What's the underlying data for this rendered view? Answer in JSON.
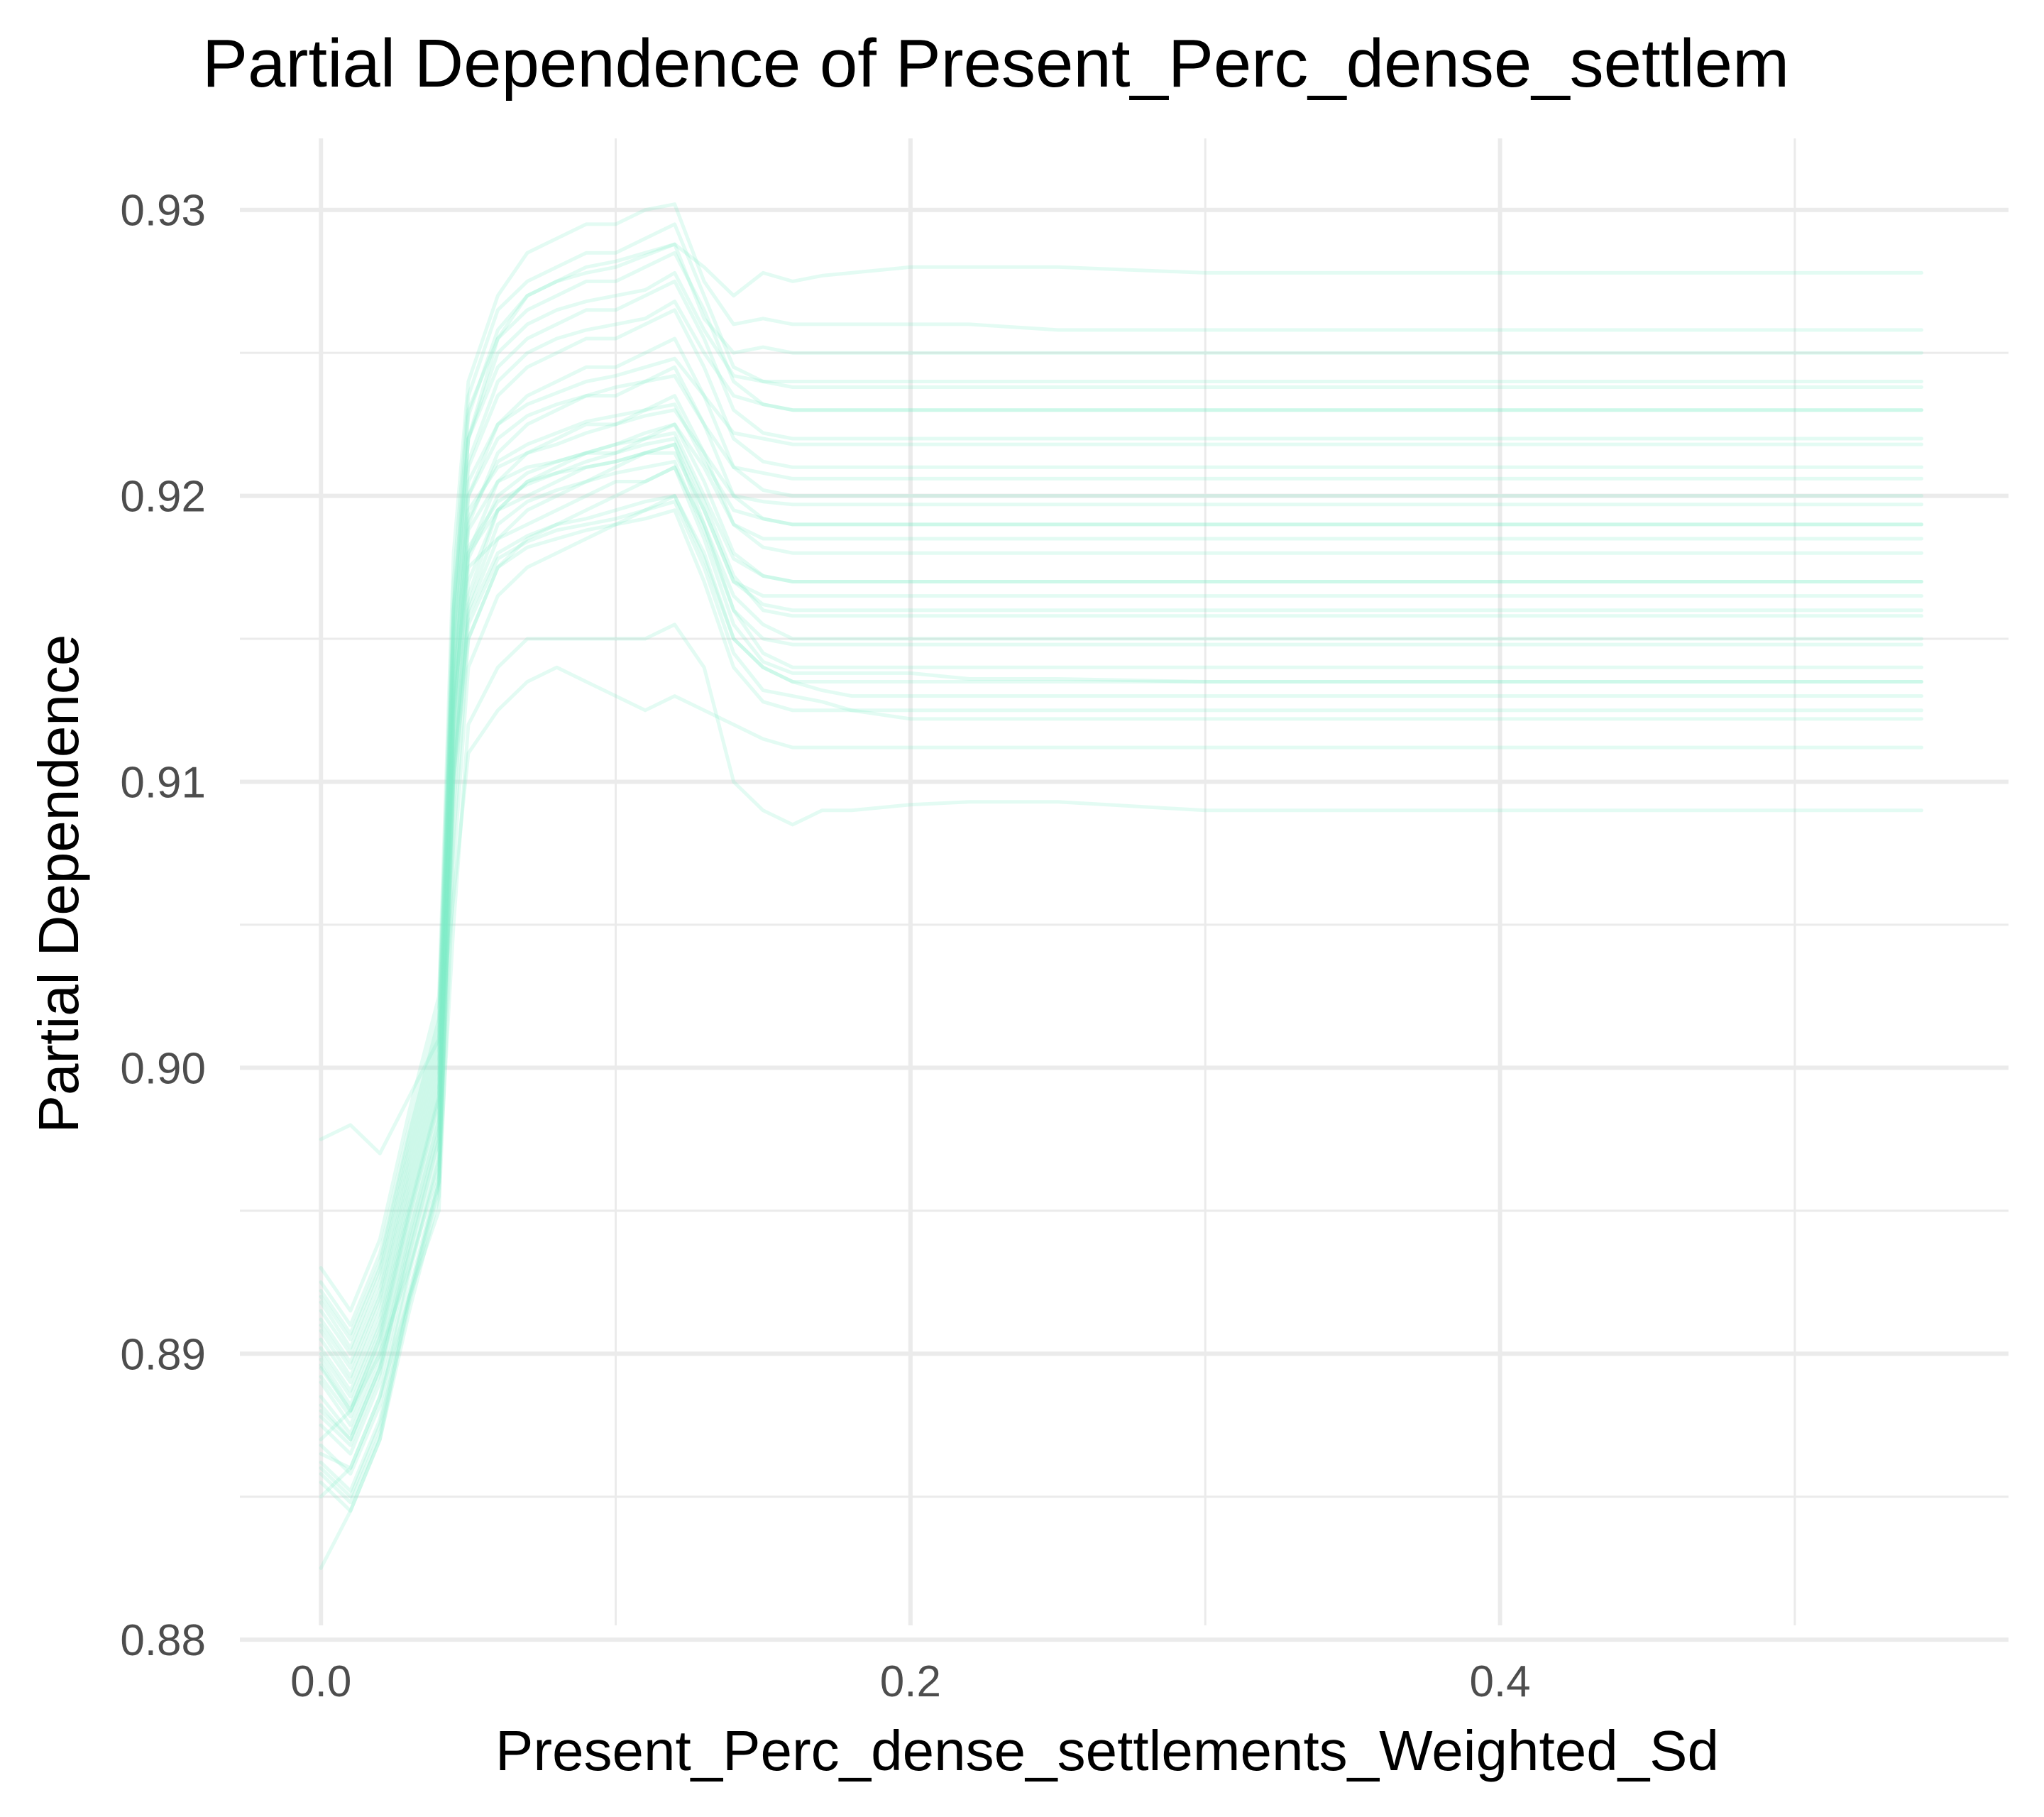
{
  "chart_data": {
    "type": "line",
    "title": "Partial Dependence of Present_Perc_dense_settlem",
    "xlabel": "Present_Perc_dense_settlements_Weighted_Sd",
    "ylabel": "Partial Dependence",
    "xlim": [
      -0.0275,
      0.5725
    ],
    "ylim": [
      0.8805,
      0.9325
    ],
    "x_ticks": [
      0.0,
      0.2,
      0.4
    ],
    "x_tick_labels": [
      "0.0",
      "0.2",
      "0.4"
    ],
    "x_minor_ticks": [
      0.1,
      0.3,
      0.5
    ],
    "y_ticks": [
      0.88,
      0.89,
      0.9,
      0.91,
      0.92,
      0.93
    ],
    "y_tick_labels": [
      "0.88",
      "0.89",
      "0.90",
      "0.91",
      "0.92",
      "0.93"
    ],
    "y_minor_ticks": [
      0.885,
      0.895,
      0.905,
      0.915,
      0.925
    ],
    "grid": true,
    "legend": "none",
    "line_color": "#7fedc9",
    "line_opacity": 0.22,
    "x": [
      0.0,
      0.01,
      0.02,
      0.03,
      0.04,
      0.045,
      0.05,
      0.06,
      0.07,
      0.08,
      0.09,
      0.1,
      0.11,
      0.12,
      0.13,
      0.14,
      0.15,
      0.16,
      0.17,
      0.18,
      0.2,
      0.22,
      0.25,
      0.3,
      0.35,
      0.4,
      0.45,
      0.5,
      0.543
    ],
    "series": [
      {
        "values": [
          0.8825,
          0.8845,
          0.887,
          0.892,
          0.896,
          0.905,
          0.912,
          0.914,
          0.915,
          0.915,
          0.915,
          0.915,
          0.915,
          0.9155,
          0.914,
          0.91,
          0.909,
          0.9085,
          0.909,
          0.909,
          0.9092,
          0.9093,
          0.9093,
          0.909,
          0.909,
          0.909,
          0.909,
          0.909,
          0.909
        ]
      },
      {
        "values": [
          0.8975,
          0.898,
          0.897,
          0.899,
          0.901,
          0.906,
          0.911,
          0.9125,
          0.9135,
          0.914,
          0.9135,
          0.913,
          0.9125,
          0.913,
          0.9125,
          0.912,
          0.9115,
          0.9112,
          0.9112,
          0.9112,
          0.9112,
          0.9112,
          0.9112,
          0.9112,
          0.9112,
          0.9112,
          0.9112,
          0.9112,
          0.9112
        ]
      },
      {
        "values": [
          0.885,
          0.886,
          0.8885,
          0.892,
          0.895,
          0.907,
          0.914,
          0.9165,
          0.9175,
          0.918,
          0.9185,
          0.919,
          0.9195,
          0.92,
          0.918,
          0.915,
          0.914,
          0.9135,
          0.9135,
          0.9135,
          0.9135,
          0.9135,
          0.9135,
          0.9135,
          0.9135,
          0.9135,
          0.9135,
          0.9135,
          0.9135
        ]
      },
      {
        "values": [
          0.887,
          0.888,
          0.89,
          0.893,
          0.8965,
          0.908,
          0.915,
          0.9175,
          0.9185,
          0.919,
          0.9195,
          0.92,
          0.9205,
          0.921,
          0.919,
          0.9165,
          0.9155,
          0.915,
          0.915,
          0.915,
          0.915,
          0.915,
          0.915,
          0.915,
          0.915,
          0.915,
          0.915,
          0.915,
          0.915
        ]
      },
      {
        "values": [
          0.888,
          0.887,
          0.8895,
          0.8935,
          0.8975,
          0.909,
          0.916,
          0.9185,
          0.9195,
          0.92,
          0.9205,
          0.921,
          0.9215,
          0.9215,
          0.9195,
          0.917,
          0.9162,
          0.916,
          0.916,
          0.916,
          0.916,
          0.916,
          0.916,
          0.916,
          0.916,
          0.916,
          0.916,
          0.916,
          0.916
        ]
      },
      {
        "values": [
          0.889,
          0.8875,
          0.89,
          0.8945,
          0.8985,
          0.91,
          0.917,
          0.9195,
          0.9205,
          0.921,
          0.9215,
          0.9215,
          0.922,
          0.9225,
          0.9205,
          0.918,
          0.9172,
          0.917,
          0.917,
          0.917,
          0.917,
          0.917,
          0.917,
          0.917,
          0.917,
          0.917,
          0.917,
          0.917,
          0.917
        ]
      },
      {
        "values": [
          0.8895,
          0.888,
          0.8905,
          0.895,
          0.899,
          0.911,
          0.918,
          0.9205,
          0.9215,
          0.922,
          0.9225,
          0.9225,
          0.923,
          0.9235,
          0.9215,
          0.919,
          0.9182,
          0.918,
          0.918,
          0.918,
          0.918,
          0.918,
          0.918,
          0.918,
          0.918,
          0.918,
          0.918,
          0.918,
          0.918
        ]
      },
      {
        "values": [
          0.89,
          0.8885,
          0.891,
          0.8955,
          0.8995,
          0.912,
          0.919,
          0.9215,
          0.9225,
          0.923,
          0.9235,
          0.9235,
          0.924,
          0.9245,
          0.9225,
          0.92,
          0.9192,
          0.919,
          0.919,
          0.919,
          0.919,
          0.919,
          0.919,
          0.919,
          0.919,
          0.919,
          0.919,
          0.919,
          0.919
        ]
      },
      {
        "values": [
          0.8905,
          0.889,
          0.8915,
          0.896,
          0.9,
          0.913,
          0.92,
          0.9225,
          0.9235,
          0.924,
          0.9245,
          0.9245,
          0.925,
          0.9255,
          0.9235,
          0.921,
          0.9202,
          0.92,
          0.92,
          0.92,
          0.92,
          0.92,
          0.92,
          0.92,
          0.92,
          0.92,
          0.92,
          0.92,
          0.92
        ]
      },
      {
        "values": [
          0.891,
          0.8895,
          0.892,
          0.8965,
          0.9005,
          0.914,
          0.921,
          0.9235,
          0.9245,
          0.925,
          0.9255,
          0.9255,
          0.926,
          0.9265,
          0.9245,
          0.922,
          0.9212,
          0.921,
          0.921,
          0.921,
          0.921,
          0.921,
          0.921,
          0.921,
          0.921,
          0.921,
          0.921,
          0.921,
          0.921
        ]
      },
      {
        "values": [
          0.8915,
          0.89,
          0.8925,
          0.897,
          0.901,
          0.915,
          0.922,
          0.9245,
          0.9255,
          0.926,
          0.9265,
          0.9265,
          0.927,
          0.9275,
          0.9255,
          0.923,
          0.9222,
          0.922,
          0.922,
          0.922,
          0.922,
          0.922,
          0.922,
          0.922,
          0.922,
          0.922,
          0.922,
          0.922,
          0.922
        ]
      },
      {
        "values": [
          0.892,
          0.8905,
          0.893,
          0.8975,
          0.9015,
          0.916,
          0.923,
          0.9255,
          0.9265,
          0.927,
          0.9275,
          0.9275,
          0.928,
          0.9285,
          0.9265,
          0.924,
          0.9232,
          0.923,
          0.923,
          0.923,
          0.923,
          0.923,
          0.923,
          0.923,
          0.923,
          0.923,
          0.923,
          0.923,
          0.923
        ]
      },
      {
        "values": [
          0.8925,
          0.891,
          0.8935,
          0.898,
          0.902,
          0.917,
          0.9235,
          0.9265,
          0.9275,
          0.928,
          0.9285,
          0.9285,
          0.929,
          0.9295,
          0.927,
          0.9245,
          0.924,
          0.9238,
          0.9238,
          0.9238,
          0.9238,
          0.9238,
          0.9238,
          0.9238,
          0.9238,
          0.9238,
          0.9238,
          0.9238,
          0.9238
        ]
      },
      {
        "values": [
          0.893,
          0.8915,
          0.894,
          0.8985,
          0.9025,
          0.918,
          0.924,
          0.927,
          0.9285,
          0.929,
          0.9295,
          0.9295,
          0.93,
          0.9302,
          0.9275,
          0.926,
          0.9262,
          0.926,
          0.926,
          0.926,
          0.926,
          0.926,
          0.9258,
          0.9258,
          0.9258,
          0.9258,
          0.9258,
          0.9258,
          0.9258
        ]
      },
      {
        "values": [
          0.8865,
          0.886,
          0.8885,
          0.893,
          0.897,
          0.916,
          0.922,
          0.9255,
          0.927,
          0.9275,
          0.928,
          0.9282,
          0.9285,
          0.9288,
          0.928,
          0.927,
          0.9278,
          0.9275,
          0.9277,
          0.9278,
          0.928,
          0.928,
          0.928,
          0.9278,
          0.9278,
          0.9278,
          0.9278,
          0.9278,
          0.9278
        ]
      },
      {
        "values": [
          0.886,
          0.885,
          0.8875,
          0.892,
          0.896,
          0.911,
          0.9165,
          0.9195,
          0.9205,
          0.9208,
          0.921,
          0.9212,
          0.9215,
          0.9218,
          0.919,
          0.916,
          0.9145,
          0.914,
          0.914,
          0.914,
          0.914,
          0.914,
          0.914,
          0.914,
          0.914,
          0.914,
          0.914,
          0.914,
          0.914
        ]
      },
      {
        "values": [
          0.8875,
          0.8865,
          0.889,
          0.8935,
          0.8975,
          0.912,
          0.9175,
          0.9185,
          0.919,
          0.9195,
          0.92,
          0.9205,
          0.9205,
          0.921,
          0.9185,
          0.9155,
          0.9142,
          0.9138,
          0.9138,
          0.9138,
          0.9138,
          0.9136,
          0.9136,
          0.9135,
          0.9135,
          0.9135,
          0.9135,
          0.9135,
          0.9135
        ]
      },
      {
        "values": [
          0.8885,
          0.8872,
          0.8897,
          0.8942,
          0.8982,
          0.9125,
          0.918,
          0.9195,
          0.92,
          0.9205,
          0.921,
          0.9212,
          0.9215,
          0.9218,
          0.9195,
          0.917,
          0.9165,
          0.9165,
          0.9165,
          0.9165,
          0.9165,
          0.9165,
          0.9165,
          0.9165,
          0.9165,
          0.9165,
          0.9165,
          0.9165,
          0.9165
        ]
      },
      {
        "values": [
          0.8898,
          0.8882,
          0.8908,
          0.8952,
          0.8992,
          0.9135,
          0.9195,
          0.921,
          0.9215,
          0.9218,
          0.9222,
          0.9225,
          0.9228,
          0.923,
          0.9215,
          0.92,
          0.9198,
          0.9197,
          0.9197,
          0.9197,
          0.9197,
          0.9197,
          0.9197,
          0.9197,
          0.9197,
          0.9197,
          0.9197,
          0.9197,
          0.9197
        ]
      },
      {
        "values": [
          0.8908,
          0.8892,
          0.8918,
          0.8962,
          0.9002,
          0.9145,
          0.9205,
          0.9225,
          0.9232,
          0.9236,
          0.924,
          0.9242,
          0.9245,
          0.9248,
          0.9235,
          0.9222,
          0.922,
          0.9218,
          0.9218,
          0.9218,
          0.9218,
          0.9218,
          0.9218,
          0.9218,
          0.9218,
          0.9218,
          0.9218,
          0.9218,
          0.9218
        ]
      },
      {
        "values": [
          0.8855,
          0.8845,
          0.887,
          0.8915,
          0.8955,
          0.91,
          0.915,
          0.9175,
          0.9182,
          0.9185,
          0.9188,
          0.919,
          0.9192,
          0.9195,
          0.917,
          0.914,
          0.9128,
          0.9125,
          0.9125,
          0.9125,
          0.9125,
          0.9125,
          0.9125,
          0.9125,
          0.9125,
          0.9125,
          0.9125,
          0.9125,
          0.9125
        ]
      },
      {
        "values": [
          0.8868,
          0.8858,
          0.8882,
          0.8928,
          0.8968,
          0.9108,
          0.9162,
          0.919,
          0.9198,
          0.9202,
          0.9205,
          0.9208,
          0.921,
          0.9212,
          0.9188,
          0.916,
          0.915,
          0.9148,
          0.9148,
          0.9148,
          0.9148,
          0.9148,
          0.9148,
          0.9148,
          0.9148,
          0.9148,
          0.9148,
          0.9148,
          0.9148
        ]
      },
      {
        "values": [
          0.8892,
          0.8878,
          0.8903,
          0.8948,
          0.8988,
          0.913,
          0.9188,
          0.9205,
          0.921,
          0.9212,
          0.9215,
          0.9218,
          0.9222,
          0.9225,
          0.921,
          0.919,
          0.9185,
          0.9185,
          0.9185,
          0.9185,
          0.9185,
          0.9185,
          0.9185,
          0.9185,
          0.9185,
          0.9185,
          0.9185,
          0.9185,
          0.9185
        ]
      },
      {
        "values": [
          0.8912,
          0.8897,
          0.8922,
          0.8967,
          0.9007,
          0.915,
          0.9212,
          0.924,
          0.925,
          0.9255,
          0.9258,
          0.926,
          0.9262,
          0.9268,
          0.925,
          0.9235,
          0.9232,
          0.923,
          0.923,
          0.923,
          0.923,
          0.923,
          0.923,
          0.923,
          0.923,
          0.923,
          0.923,
          0.923,
          0.923
        ]
      },
      {
        "values": [
          0.8862,
          0.8852,
          0.8877,
          0.8922,
          0.8962,
          0.9105,
          0.9158,
          0.918,
          0.9186,
          0.919,
          0.9192,
          0.9195,
          0.9198,
          0.92,
          0.9178,
          0.915,
          0.914,
          0.9135,
          0.9132,
          0.913,
          0.913,
          0.913,
          0.913,
          0.913,
          0.913,
          0.913,
          0.913,
          0.913,
          0.913
        ]
      },
      {
        "values": [
          0.8878,
          0.8868,
          0.8893,
          0.8938,
          0.8978,
          0.9122,
          0.9178,
          0.92,
          0.9208,
          0.9212,
          0.9215,
          0.9218,
          0.922,
          0.9222,
          0.92,
          0.9178,
          0.9172,
          0.917,
          0.917,
          0.917,
          0.917,
          0.917,
          0.917,
          0.917,
          0.917,
          0.917,
          0.917,
          0.917,
          0.917
        ]
      },
      {
        "values": [
          0.8902,
          0.8887,
          0.8912,
          0.8957,
          0.8997,
          0.914,
          0.92,
          0.922,
          0.9228,
          0.9232,
          0.9235,
          0.9238,
          0.924,
          0.9242,
          0.9225,
          0.921,
          0.9208,
          0.9206,
          0.9206,
          0.9206,
          0.9206,
          0.9206,
          0.9206,
          0.9206,
          0.9206,
          0.9206,
          0.9206,
          0.9206,
          0.9206
        ]
      },
      {
        "values": [
          0.8918,
          0.8902,
          0.8928,
          0.8972,
          0.9012,
          0.9155,
          0.922,
          0.925,
          0.926,
          0.9265,
          0.9268,
          0.927,
          0.9272,
          0.9278,
          0.9258,
          0.9242,
          0.924,
          0.924,
          0.924,
          0.924,
          0.924,
          0.924,
          0.924,
          0.924,
          0.924,
          0.924,
          0.924,
          0.924,
          0.924
        ]
      },
      {
        "values": [
          0.8858,
          0.8848,
          0.8872,
          0.8918,
          0.8958,
          0.9102,
          0.9155,
          0.9178,
          0.9184,
          0.9188,
          0.919,
          0.9192,
          0.9195,
          0.9198,
          0.9175,
          0.9145,
          0.9132,
          0.913,
          0.9128,
          0.9125,
          0.9122,
          0.9122,
          0.9122,
          0.9122,
          0.9122,
          0.9122,
          0.9122,
          0.9122,
          0.9122
        ]
      },
      {
        "values": [
          0.8882,
          0.887,
          0.8895,
          0.894,
          0.898,
          0.9124,
          0.9182,
          0.9198,
          0.9204,
          0.9208,
          0.9212,
          0.9215,
          0.9218,
          0.922,
          0.9198,
          0.9172,
          0.916,
          0.9158,
          0.9158,
          0.9158,
          0.9158,
          0.9158,
          0.9158,
          0.9158,
          0.9158,
          0.9158,
          0.9158,
          0.9158,
          0.9158
        ]
      },
      {
        "values": [
          0.8896,
          0.888,
          0.8906,
          0.895,
          0.899,
          0.9132,
          0.9192,
          0.9212,
          0.9218,
          0.9222,
          0.9226,
          0.9228,
          0.923,
          0.9232,
          0.9212,
          0.9195,
          0.9192,
          0.919,
          0.919,
          0.919,
          0.919,
          0.919,
          0.919,
          0.919,
          0.919,
          0.919,
          0.919,
          0.919,
          0.919
        ]
      },
      {
        "values": [
          0.8922,
          0.8907,
          0.8932,
          0.8977,
          0.9017,
          0.9162,
          0.9228,
          0.9258,
          0.927,
          0.9275,
          0.9278,
          0.928,
          0.9284,
          0.9288,
          0.9262,
          0.925,
          0.9252,
          0.925,
          0.925,
          0.925,
          0.925,
          0.925,
          0.925,
          0.925,
          0.925,
          0.925,
          0.925,
          0.925,
          0.925
        ]
      }
    ]
  }
}
